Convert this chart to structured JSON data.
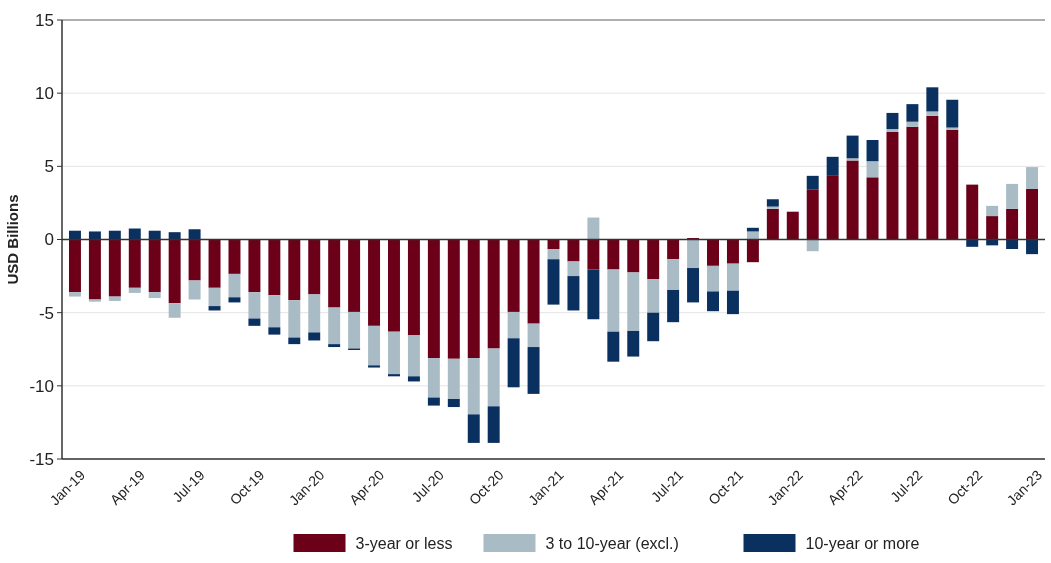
{
  "chart_data": {
    "type": "bar",
    "stacked": true,
    "ylabel": "USD Billions",
    "categories": [
      "Jan-19",
      null,
      null,
      "Apr-19",
      null,
      null,
      "Jul-19",
      null,
      null,
      "Oct-19",
      null,
      null,
      "Jan-20",
      null,
      null,
      "Apr-20",
      null,
      null,
      "Jul-20",
      null,
      null,
      "Oct-20",
      null,
      null,
      "Jan-21",
      null,
      null,
      "Apr-21",
      null,
      null,
      "Jul-21",
      null,
      null,
      "Oct-21",
      null,
      null,
      "Jan-22",
      null,
      null,
      "Apr-22",
      null,
      null,
      "Jul-22",
      null,
      null,
      "Oct-22",
      null,
      null,
      "Jan-23"
    ],
    "series": [
      {
        "name": "3-year or less",
        "color": "#6b0018",
        "values": [
          -3.6,
          -4.1,
          -3.9,
          -3.3,
          -3.6,
          -4.35,
          -2.8,
          -3.3,
          -2.35,
          -3.6,
          -3.8,
          -4.15,
          -3.75,
          -4.65,
          -4.95,
          -5.9,
          -6.3,
          -6.55,
          -8.1,
          -8.15,
          -8.1,
          -7.45,
          -4.95,
          -5.75,
          -0.65,
          -1.5,
          -2.05,
          -2.05,
          -2.25,
          -2.7,
          -1.35,
          0.1,
          -1.8,
          -1.65,
          -1.55,
          2.1,
          1.9,
          3.4,
          4.35,
          5.4,
          4.25,
          7.35,
          7.7,
          8.45,
          7.5,
          3.75,
          1.6,
          2.1,
          3.45
        ]
      },
      {
        "name": "3 to 10-year (excl.)",
        "color": "#a9bcc5",
        "values": [
          -0.3,
          -0.15,
          -0.3,
          -0.35,
          -0.4,
          -1.0,
          -1.3,
          -1.25,
          -1.6,
          -1.8,
          -2.2,
          -2.55,
          -2.6,
          -2.5,
          -2.5,
          -2.7,
          -2.9,
          -2.8,
          -2.7,
          -2.75,
          -3.85,
          -3.95,
          -1.8,
          -1.6,
          -0.7,
          -1.0,
          1.5,
          -4.25,
          -4.0,
          -2.3,
          -2.1,
          -1.95,
          -1.75,
          -1.85,
          0.55,
          0.15,
          0,
          -0.8,
          0,
          0.15,
          1.1,
          0.2,
          0.35,
          0.3,
          0.15,
          0,
          0.7,
          1.7,
          1.5
        ]
      },
      {
        "name": "10-year or more",
        "color": "#0a3060",
        "values": [
          0.6,
          0.55,
          0.6,
          0.75,
          0.6,
          0.5,
          0.7,
          -0.3,
          -0.35,
          -0.5,
          -0.5,
          -0.45,
          -0.55,
          -0.2,
          -0.1,
          -0.15,
          -0.15,
          -0.35,
          -0.55,
          -0.55,
          -1.95,
          -2.5,
          -3.35,
          -3.2,
          -3.1,
          -2.35,
          -3.4,
          -2.05,
          -1.75,
          -1.95,
          -2.2,
          -2.35,
          -1.35,
          -1.6,
          0.25,
          0.5,
          0,
          0.95,
          1.3,
          1.55,
          1.45,
          1.1,
          1.2,
          1.65,
          1.9,
          -0.5,
          -0.4,
          -0.65,
          -1.0
        ]
      }
    ],
    "ylim": [
      -15,
      15
    ],
    "yticks": [
      -15,
      -10,
      -5,
      0,
      5,
      10,
      15
    ],
    "grid": "y",
    "legend": "bottom"
  }
}
